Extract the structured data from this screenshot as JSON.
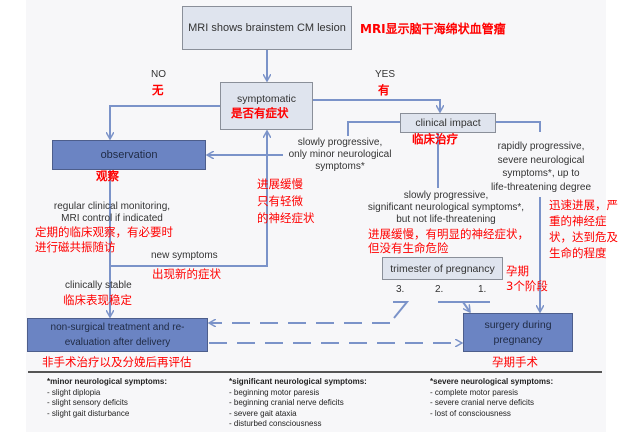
{
  "nodes": {
    "mri": {
      "label": "MRI shows brainstem CM lesion",
      "zh": "MRI显示脑干海绵状血管瘤"
    },
    "symptomatic": {
      "label": "symptomatic",
      "zh": "是否有症状"
    },
    "no": {
      "label": "NO",
      "zh": "无"
    },
    "yes": {
      "label": "YES",
      "zh": "有"
    },
    "clinical_impact": {
      "label": "clinical impact",
      "zh": "临床治疗"
    },
    "observation": {
      "label": "observation",
      "zh": "观察"
    },
    "monitoring": {
      "label": "regular clinical monitoring,\nMRI control if indicated",
      "zh": "定期的临床观察，有必要时\n进行磁共振随访"
    },
    "new_symptoms": {
      "label": "new symptoms",
      "zh": "出现新的症状"
    },
    "stable": {
      "label": "clinically stable",
      "zh": "临床表现稳定"
    },
    "slow_minor": {
      "label": "slowly progressive,\nonly minor neurological\nsymptoms*",
      "zh": "进展缓慢\n只有轻微\n的神经症状"
    },
    "slow_significant": {
      "label": "slowly progressive,\nsignificant neurological symptoms*,\nbut not life-threatening",
      "zh": "进展缓慢，有明显的神经症状，\n但没有生命危险"
    },
    "rapid": {
      "label": "rapidly progressive,\nsevere neurological\nsymptoms*, up to\nlife-threatening degree",
      "zh": "迅速进展，严\n重的神经症\n状，达到危及\n生命的程度"
    },
    "trimester": {
      "label": "trimester of pregnancy",
      "zh": "孕期\n3个阶段",
      "numbers": [
        "3.",
        "2.",
        "1."
      ]
    },
    "nonsurgical": {
      "label": "non-surgical treatment and re-\nevaluation after delivery",
      "zh": "非手术治疗以及分娩后再评估"
    },
    "surgery": {
      "label": "surgery during\npregnancy",
      "zh": "孕期手术"
    }
  },
  "footnotes": [
    {
      "title": "*minor neurological symptoms:",
      "items": [
        "- slight diplopia",
        "- slight sensory deficits",
        "- slight gait disturbance"
      ]
    },
    {
      "title": "*significant neurological symptoms:",
      "items": [
        "- beginning motor paresis",
        "- beginning cranial nerve deficits",
        "- severe gait ataxia",
        "- disturbed consciousness"
      ]
    },
    {
      "title": "*severe neurological symptoms:",
      "items": [
        "- complete motor paresis",
        "- severe cranial nerve deficits",
        "- lost of consciousness"
      ]
    }
  ],
  "colors": {
    "line": "#7b93c9",
    "dark_box": "#6b84c3",
    "light_box": "#dfe4ee",
    "annotation": "#ff0000"
  }
}
